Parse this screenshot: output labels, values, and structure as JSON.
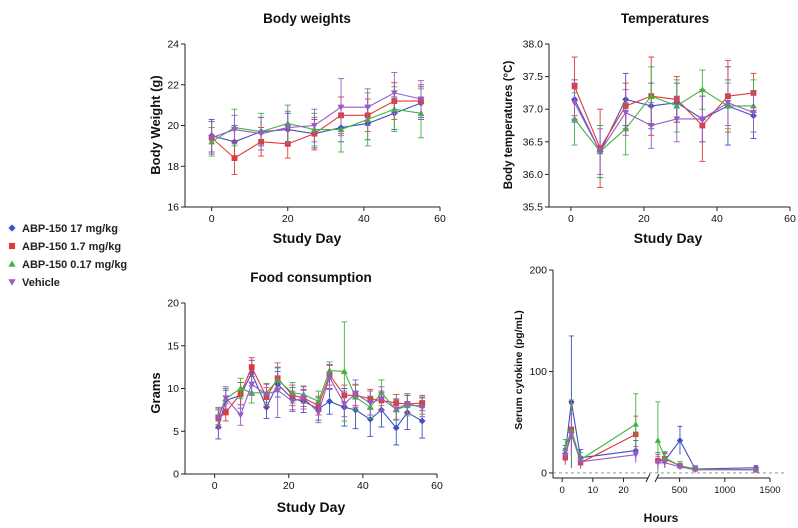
{
  "legend": [
    {
      "label": "ABP-150 17 mg/kg",
      "color": "#3f51c4",
      "marker": "diamond"
    },
    {
      "label": "ABP-150 1.7 mg/kg",
      "color": "#e03a3a",
      "marker": "square"
    },
    {
      "label": "ABP-150 0.17 mg/kg",
      "color": "#3fb53f",
      "marker": "triangle-up"
    },
    {
      "label": "Vehicle",
      "color": "#9b59c6",
      "marker": "triangle-down"
    }
  ],
  "chart_data": [
    {
      "id": "bw",
      "type": "line",
      "title": "Body weights",
      "xlabel": "Study Day",
      "ylabel": "Body Weight (g)",
      "xlim": [
        -7,
        60
      ],
      "ylim": [
        16,
        24
      ],
      "xticks": [
        0,
        20,
        40,
        60
      ],
      "yticks": [
        16,
        18,
        20,
        22,
        24
      ],
      "x": [
        0,
        6,
        13,
        20,
        27,
        34,
        41,
        48,
        55
      ],
      "series": [
        {
          "name": "ABP-150 17 mg/kg",
          "y": [
            19.5,
            19.2,
            19.7,
            19.8,
            19.6,
            19.9,
            20.1,
            20.6,
            21.1
          ],
          "err": [
            0.8,
            0.8,
            0.7,
            0.8,
            0.7,
            0.7,
            0.8,
            0.8,
            0.8
          ]
        },
        {
          "name": "ABP-150 1.7 mg/kg",
          "y": [
            19.4,
            18.4,
            19.2,
            19.1,
            19.6,
            20.5,
            20.5,
            21.2,
            21.2
          ],
          "err": [
            0.8,
            0.8,
            0.7,
            0.7,
            0.8,
            0.9,
            0.8,
            0.9,
            0.8
          ]
        },
        {
          "name": "ABP-150 0.17 mg/kg",
          "y": [
            19.2,
            19.9,
            19.7,
            20.1,
            19.8,
            19.8,
            20.3,
            20.8,
            20.6
          ],
          "err": [
            0.7,
            0.9,
            0.9,
            0.9,
            0.8,
            1.1,
            1.3,
            1.1,
            1.2
          ]
        },
        {
          "name": "Vehicle",
          "y": [
            19.4,
            19.8,
            19.6,
            19.9,
            20.0,
            20.9,
            20.9,
            21.6,
            21.3
          ],
          "err": [
            0.8,
            0.7,
            0.8,
            0.8,
            0.8,
            1.4,
            0.9,
            1.0,
            0.9
          ]
        }
      ]
    },
    {
      "id": "temp",
      "type": "line",
      "title": "Temperatures",
      "xlabel": "Study Day",
      "ylabel": "Body temperatures (°C)",
      "xlim": [
        -6,
        60
      ],
      "ylim": [
        35.5,
        38.0
      ],
      "xticks": [
        0,
        20,
        40,
        60
      ],
      "yticks": [
        35.5,
        36.0,
        36.5,
        37.0,
        37.5,
        38.0
      ],
      "x": [
        1,
        8,
        15,
        22,
        29,
        36,
        43,
        50
      ],
      "series": [
        {
          "name": "ABP-150 17 mg/kg",
          "y": [
            37.15,
            36.35,
            37.15,
            37.05,
            37.1,
            36.85,
            37.05,
            36.9
          ],
          "err": [
            0.3,
            0.4,
            0.4,
            0.35,
            0.3,
            0.35,
            0.6,
            0.35
          ]
        },
        {
          "name": "ABP-150 1.7 mg/kg",
          "y": [
            37.35,
            36.4,
            37.05,
            37.2,
            37.15,
            36.75,
            37.2,
            37.25
          ],
          "err": [
            0.45,
            0.6,
            0.35,
            0.6,
            0.35,
            0.55,
            0.55,
            0.3
          ]
        },
        {
          "name": "ABP-150 0.17 mg/kg",
          "y": [
            36.85,
            36.35,
            36.7,
            37.2,
            37.05,
            37.3,
            37.05,
            37.05
          ],
          "err": [
            0.4,
            0.4,
            0.4,
            0.45,
            0.4,
            0.3,
            0.35,
            0.4
          ]
        },
        {
          "name": "Vehicle",
          "y": [
            37.1,
            36.35,
            36.95,
            36.75,
            36.85,
            36.85,
            37.1,
            36.95
          ],
          "err": [
            0.3,
            0.35,
            0.35,
            0.35,
            0.35,
            0.35,
            0.35,
            0.3
          ]
        }
      ]
    },
    {
      "id": "food",
      "type": "line",
      "title": "Food consumption",
      "xlabel": "Study Day",
      "ylabel": "Grams",
      "xlim": [
        -8,
        60
      ],
      "ylim": [
        0,
        20
      ],
      "xticks": [
        0,
        20,
        40,
        60
      ],
      "yticks": [
        0,
        5,
        10,
        15,
        20
      ],
      "x": [
        1,
        3,
        7,
        10,
        14,
        17,
        21,
        24,
        28,
        31,
        35,
        38,
        42,
        45,
        49,
        52,
        56
      ],
      "series": [
        {
          "name": "ABP-150 17 mg/kg",
          "y": [
            5.5,
            8.6,
            9.2,
            11.8,
            7.8,
            10.5,
            8.8,
            8.5,
            7.6,
            8.5,
            7.8,
            7.5,
            6.4,
            7.5,
            5.4,
            7.2,
            6.2
          ],
          "err": [
            1.4,
            1.2,
            1.5,
            1.5,
            1.3,
            1.5,
            1.3,
            1.3,
            1.3,
            1.5,
            2.2,
            2.2,
            2.0,
            2.0,
            2.0,
            2.0,
            2.0
          ]
        },
        {
          "name": "ABP-150 1.7 mg/kg",
          "y": [
            6.5,
            7.2,
            9.4,
            12.5,
            9.0,
            11.2,
            9.2,
            8.9,
            8.0,
            11.6,
            9.2,
            9.2,
            8.8,
            8.6,
            8.3,
            8.2,
            8.3
          ],
          "err": [
            1.0,
            1.0,
            1.3,
            1.1,
            1.1,
            1.3,
            1.2,
            1.0,
            1.1,
            1.2,
            1.2,
            1.2,
            1.1,
            1.1,
            1.0,
            1.0,
            0.9
          ]
        },
        {
          "name": "ABP-150 0.17 mg/kg",
          "y": [
            6.8,
            8.8,
            10.0,
            9.5,
            9.5,
            11.0,
            9.5,
            9.3,
            8.5,
            12.1,
            12.0,
            9.0,
            7.8,
            9.5,
            7.5,
            8.0,
            8.0
          ],
          "err": [
            1.0,
            1.2,
            1.2,
            1.2,
            1.1,
            1.4,
            1.2,
            1.0,
            1.2,
            1.0,
            5.8,
            1.5,
            1.3,
            1.5,
            1.2,
            1.2,
            1.0
          ]
        },
        {
          "name": "Vehicle",
          "y": [
            6.5,
            8.9,
            6.9,
            10.5,
            9.3,
            9.8,
            8.5,
            8.9,
            7.2,
            11.3,
            8.2,
            9.4,
            8.3,
            8.8,
            7.6,
            8.2,
            7.8
          ],
          "err": [
            1.2,
            1.3,
            1.2,
            1.3,
            1.2,
            3.2,
            1.2,
            1.3,
            1.2,
            1.4,
            1.5,
            1.6,
            1.4,
            1.4,
            1.2,
            1.2,
            1.1
          ]
        }
      ]
    },
    {
      "id": "cyto",
      "type": "line",
      "title": "",
      "xlabel": "Hours",
      "ylabel": "Serum cytokine (pg/mL)",
      "ylim": [
        -5,
        200
      ],
      "yticks": [
        0,
        100,
        200
      ],
      "baseline": 0,
      "segments": [
        {
          "xlim": [
            -3,
            28
          ],
          "xticks": [
            0,
            10,
            20
          ]
        },
        {
          "xlim": [
            250,
            1500
          ],
          "xticks": [
            500,
            1000,
            1500
          ]
        }
      ],
      "series": [
        {
          "name": "ABP-150 17 mg/kg",
          "x": [
            1,
            3,
            6,
            24,
            260,
            336,
            504,
            672,
            1344
          ],
          "y": [
            19,
            70,
            15,
            22,
            12,
            12,
            32,
            4,
            5
          ],
          "err": [
            8,
            65,
            8,
            10,
            8,
            7,
            14,
            3,
            2
          ]
        },
        {
          "name": "ABP-150 1.7 mg/kg",
          "x": [
            1,
            3,
            6,
            24,
            260,
            336,
            504,
            672,
            1344
          ],
          "y": [
            15,
            43,
            10,
            38,
            12,
            14,
            7,
            4,
            3
          ],
          "err": [
            7,
            25,
            6,
            18,
            6,
            6,
            4,
            2,
            2
          ]
        },
        {
          "name": "ABP-150 0.17 mg/kg",
          "x": [
            1,
            3,
            6,
            24,
            260,
            336,
            504,
            672,
            1344
          ],
          "y": [
            24,
            42,
            13,
            48,
            32,
            15,
            7,
            4,
            3
          ],
          "err": [
            9,
            30,
            7,
            30,
            38,
            6,
            4,
            2,
            2
          ]
        },
        {
          "name": "Vehicle",
          "x": [
            1,
            3,
            6,
            24,
            260,
            336,
            504,
            672,
            1344
          ],
          "y": [
            17,
            38,
            11,
            18,
            10,
            10,
            6,
            3,
            3
          ],
          "err": [
            7,
            20,
            5,
            8,
            6,
            5,
            3,
            2,
            2
          ]
        }
      ]
    }
  ]
}
